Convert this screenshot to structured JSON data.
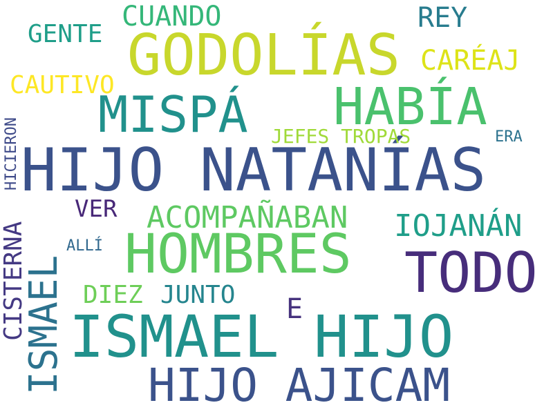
{
  "cloud": {
    "words": [
      {
        "text": "GODOLÍAS",
        "color": "#c8d72c"
      },
      {
        "text": "HIJO NATANÍAS",
        "color": "#3b528b"
      },
      {
        "text": "HOMBRES",
        "color": "#5ec962"
      },
      {
        "text": "ISMAEL HIJO",
        "color": "#21918c"
      },
      {
        "text": "HIJO AJICAM",
        "color": "#3b528b"
      },
      {
        "text": "TODO",
        "color": "#472d7b"
      },
      {
        "text": "MISPÁ",
        "color": "#21918c"
      },
      {
        "text": "HABÍA",
        "color": "#4ac16d"
      },
      {
        "text": "ISMAEL",
        "color": "#2c728e"
      },
      {
        "text": "CUANDO",
        "color": "#35b779"
      },
      {
        "text": "REY",
        "color": "#287c8e"
      },
      {
        "text": "GENTE",
        "color": "#1f9e89"
      },
      {
        "text": "CARÉAJ",
        "color": "#dde318"
      },
      {
        "text": "CAUTIVO",
        "color": "#fde725"
      },
      {
        "text": "HICIERON",
        "color": "#3e4a89"
      },
      {
        "text": "JEFES TROPAS",
        "color": "#a0da39"
      },
      {
        "text": "ERA",
        "color": "#2c728e"
      },
      {
        "text": "VER",
        "color": "#482878"
      },
      {
        "text": "ACOMPAÑABAN",
        "color": "#5ec962"
      },
      {
        "text": "IOJANÁN",
        "color": "#1f9e89"
      },
      {
        "text": "CISTERNA",
        "color": "#443983"
      },
      {
        "text": "ALLÍ",
        "color": "#31688e"
      },
      {
        "text": "DIEZ",
        "color": "#6ece58"
      },
      {
        "text": "JUNTO",
        "color": "#25858e"
      },
      {
        "text": "E",
        "color": "#46327e"
      }
    ]
  }
}
